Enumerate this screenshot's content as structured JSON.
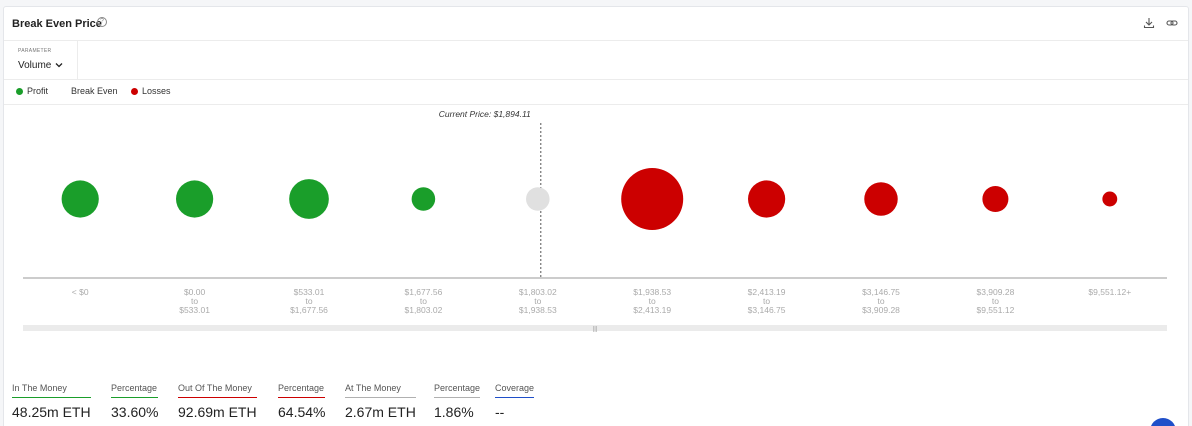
{
  "header": {
    "title": "Break Even Price",
    "help_icon": "question-circle-icon",
    "download_icon": "download-icon",
    "link_icon": "link-icon"
  },
  "parameter": {
    "label": "PARAMETER",
    "value": "Volume"
  },
  "legend": {
    "items": [
      {
        "label": "Profit",
        "color": "#1a9e2a"
      },
      {
        "label": "Break Even",
        "color": null
      },
      {
        "label": "Losses",
        "color": "#cc0000"
      }
    ]
  },
  "chart_data": {
    "type": "scatter",
    "annotation": "Current Price: $1,894.11",
    "marker_after_category_index": 4,
    "colors": {
      "profit": "#1a9e2a",
      "break_even": "#e0e0e0",
      "loss": "#cc0000"
    },
    "categories": [
      {
        "top": "< $0",
        "mid": "",
        "bottom": "",
        "status": "profit",
        "size": 0.6
      },
      {
        "top": "$0.00",
        "mid": "to",
        "bottom": "$533.01",
        "status": "profit",
        "size": 0.6
      },
      {
        "top": "$533.01",
        "mid": "to",
        "bottom": "$1,677.56",
        "status": "profit",
        "size": 0.64
      },
      {
        "top": "$1,677.56",
        "mid": "to",
        "bottom": "$1,803.02",
        "status": "profit",
        "size": 0.38
      },
      {
        "top": "$1,803.02",
        "mid": "to",
        "bottom": "$1,938.53",
        "status": "break_even",
        "size": 0.38
      },
      {
        "top": "$1,938.53",
        "mid": "to",
        "bottom": "$2,413.19",
        "status": "loss",
        "size": 1.0
      },
      {
        "top": "$2,413.19",
        "mid": "to",
        "bottom": "$3,146.75",
        "status": "loss",
        "size": 0.6
      },
      {
        "top": "$3,146.75",
        "mid": "to",
        "bottom": "$3,909.28",
        "status": "loss",
        "size": 0.54
      },
      {
        "top": "$3,909.28",
        "mid": "to",
        "bottom": "$9,551.12",
        "status": "loss",
        "size": 0.42
      },
      {
        "top": "$9,551.12+",
        "mid": "",
        "bottom": "",
        "status": "loss",
        "size": 0.24
      }
    ]
  },
  "stats": [
    {
      "label": "In The Money",
      "value": "48.25m ETH",
      "color": "#1a9e2a"
    },
    {
      "label": "Percentage",
      "value": "33.60%",
      "color": "#1a9e2a"
    },
    {
      "label": "Out Of The Money",
      "value": "92.69m ETH",
      "color": "#cc0000"
    },
    {
      "label": "Percentage",
      "value": "64.54%",
      "color": "#cc0000"
    },
    {
      "label": "At The Money",
      "value": "2.67m ETH",
      "color": "#b0b0b0"
    },
    {
      "label": "Percentage",
      "value": "1.86%",
      "color": "#b0b0b0"
    },
    {
      "label": "Coverage",
      "value": "--",
      "color": "#1f4fc9"
    }
  ]
}
